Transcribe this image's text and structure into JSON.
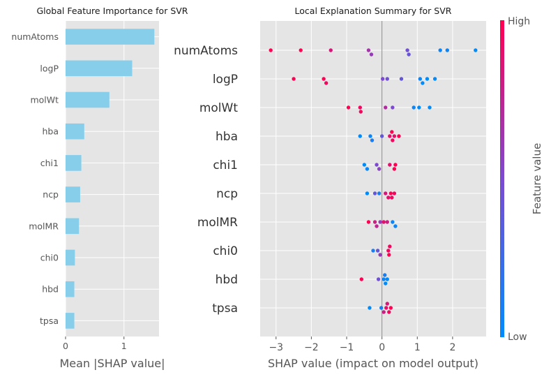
{
  "colors": {
    "panel_bg": "#e5e5e5",
    "grid": "#ffffff",
    "bar": "#87ceeb",
    "low": "#008bfb",
    "high": "#ff0052",
    "text": "#555555",
    "title": "#1a1a1a",
    "zero_line": "#888888"
  },
  "chart_data": [
    {
      "type": "bar",
      "orientation": "horizontal",
      "title": "Global Feature Importance for SVR",
      "xlabel": "Mean |SHAP value|",
      "ylabel": "",
      "xlim": [
        0,
        1.6
      ],
      "xticks": [
        0,
        1
      ],
      "grid": true,
      "categories": [
        "numAtoms",
        "logP",
        "molWt",
        "hba",
        "chi1",
        "ncp",
        "molMR",
        "chi0",
        "hbd",
        "tpsa"
      ],
      "values": [
        1.52,
        1.14,
        0.75,
        0.32,
        0.27,
        0.25,
        0.23,
        0.16,
        0.15,
        0.15
      ]
    },
    {
      "type": "scatter",
      "title": "Local Explanation Summary for SVR",
      "xlabel": "SHAP value (impact on model output)",
      "ylabel": "",
      "xlim": [
        -3.45,
        2.95
      ],
      "xticks": [
        -3,
        -2,
        -1,
        0,
        1,
        2
      ],
      "grid": true,
      "colorbar": {
        "label": "Feature value",
        "high_label": "High",
        "low_label": "Low"
      },
      "features": [
        {
          "name": "numAtoms",
          "points": [
            {
              "x": -3.15,
              "v": 1.0
            },
            {
              "x": -2.3,
              "v": 1.0
            },
            {
              "x": -1.45,
              "v": 0.85
            },
            {
              "x": -0.38,
              "v": 0.65
            },
            {
              "x": -0.3,
              "v": 0.6
            },
            {
              "x": 0.72,
              "v": 0.45
            },
            {
              "x": 0.76,
              "v": 0.42
            },
            {
              "x": 1.65,
              "v": 0.05
            },
            {
              "x": 1.85,
              "v": 0.05
            },
            {
              "x": 2.65,
              "v": 0.0
            }
          ]
        },
        {
          "name": "logP",
          "points": [
            {
              "x": -2.5,
              "v": 1.0
            },
            {
              "x": -1.65,
              "v": 1.0
            },
            {
              "x": -1.58,
              "v": 0.95
            },
            {
              "x": 0.02,
              "v": 0.5
            },
            {
              "x": 0.15,
              "v": 0.45
            },
            {
              "x": 0.55,
              "v": 0.4
            },
            {
              "x": 1.08,
              "v": 0.05
            },
            {
              "x": 1.15,
              "v": 0.0
            },
            {
              "x": 1.28,
              "v": 0.0
            },
            {
              "x": 1.5,
              "v": 0.0
            }
          ]
        },
        {
          "name": "molWt",
          "points": [
            {
              "x": -0.95,
              "v": 1.0
            },
            {
              "x": -0.62,
              "v": 0.95
            },
            {
              "x": -0.6,
              "v": 0.95
            },
            {
              "x": 0.1,
              "v": 0.7
            },
            {
              "x": 0.3,
              "v": 0.5
            },
            {
              "x": 0.9,
              "v": 0.05
            },
            {
              "x": 1.05,
              "v": 0.0
            },
            {
              "x": 1.35,
              "v": 0.0
            }
          ]
        },
        {
          "name": "hba",
          "points": [
            {
              "x": -0.62,
              "v": 0.0
            },
            {
              "x": -0.33,
              "v": 0.05
            },
            {
              "x": -0.28,
              "v": 0.1
            },
            {
              "x": 0.0,
              "v": 0.4
            },
            {
              "x": 0.22,
              "v": 0.9
            },
            {
              "x": 0.3,
              "v": 0.95
            },
            {
              "x": 0.35,
              "v": 0.9
            },
            {
              "x": 0.48,
              "v": 1.0
            },
            {
              "x": 0.28,
              "v": 1.0
            }
          ]
        },
        {
          "name": "chi1",
          "points": [
            {
              "x": -0.5,
              "v": 0.0
            },
            {
              "x": -0.42,
              "v": 0.05
            },
            {
              "x": -0.15,
              "v": 0.5
            },
            {
              "x": -0.08,
              "v": 0.55
            },
            {
              "x": 0.22,
              "v": 0.9
            },
            {
              "x": 0.38,
              "v": 1.0
            },
            {
              "x": 0.35,
              "v": 1.0
            }
          ]
        },
        {
          "name": "ncp",
          "points": [
            {
              "x": -0.42,
              "v": 0.0
            },
            {
              "x": -0.2,
              "v": 0.4
            },
            {
              "x": -0.08,
              "v": 0.1
            },
            {
              "x": 0.1,
              "v": 0.85
            },
            {
              "x": 0.18,
              "v": 0.9
            },
            {
              "x": 0.25,
              "v": 1.0
            },
            {
              "x": 0.35,
              "v": 0.95
            },
            {
              "x": 0.28,
              "v": 0.95
            }
          ]
        },
        {
          "name": "molMR",
          "points": [
            {
              "x": -0.38,
              "v": 1.0
            },
            {
              "x": -0.2,
              "v": 0.8
            },
            {
              "x": -0.15,
              "v": 0.75
            },
            {
              "x": 0.05,
              "v": 0.9
            },
            {
              "x": 0.15,
              "v": 0.8
            },
            {
              "x": 0.3,
              "v": 0.05
            },
            {
              "x": 0.38,
              "v": 0.05
            },
            {
              "x": -0.05,
              "v": 0.6
            }
          ]
        },
        {
          "name": "chi0",
          "points": [
            {
              "x": -0.25,
              "v": 0.1
            },
            {
              "x": -0.12,
              "v": 0.4
            },
            {
              "x": -0.05,
              "v": 0.6
            },
            {
              "x": 0.18,
              "v": 0.95
            },
            {
              "x": 0.2,
              "v": 1.0
            },
            {
              "x": 0.22,
              "v": 0.95
            }
          ]
        },
        {
          "name": "hbd",
          "points": [
            {
              "x": -0.58,
              "v": 1.0
            },
            {
              "x": -0.1,
              "v": 0.45
            },
            {
              "x": 0.05,
              "v": 0.05
            },
            {
              "x": 0.1,
              "v": 0.0
            },
            {
              "x": 0.15,
              "v": 0.0
            },
            {
              "x": 0.08,
              "v": 0.1
            }
          ]
        },
        {
          "name": "tpsa",
          "points": [
            {
              "x": -0.35,
              "v": 0.0
            },
            {
              "x": -0.02,
              "v": 0.1
            },
            {
              "x": 0.05,
              "v": 0.8
            },
            {
              "x": 0.12,
              "v": 0.9
            },
            {
              "x": 0.2,
              "v": 0.95
            },
            {
              "x": 0.25,
              "v": 1.0
            },
            {
              "x": 0.15,
              "v": 0.85
            }
          ]
        }
      ]
    }
  ]
}
